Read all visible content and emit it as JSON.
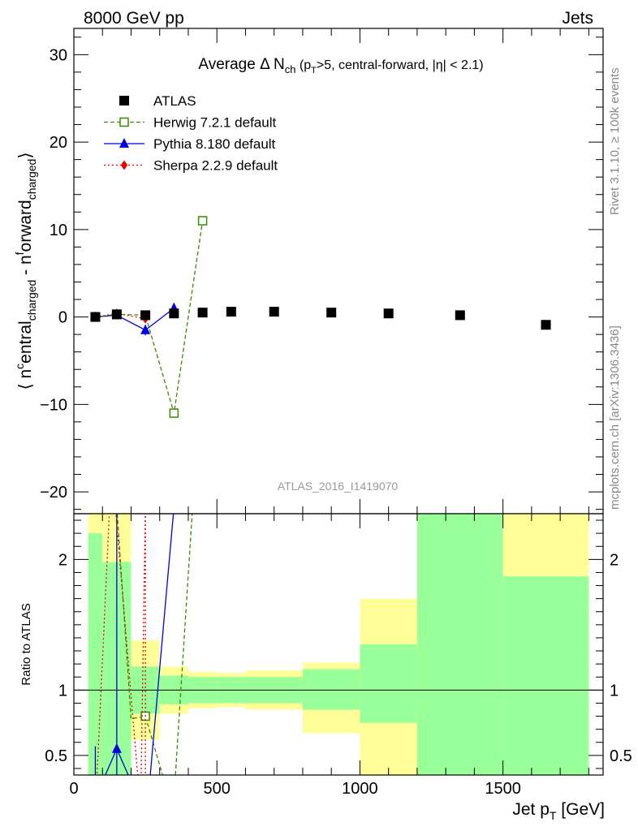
{
  "header": {
    "left": "8000 GeV pp",
    "right": "Jets"
  },
  "side_labels": {
    "rivet": "Rivet 3.1.10, ≥ 100k events",
    "mcplots": "mcplots.cern.ch [arXiv:1306.3436]"
  },
  "chart_data": [
    {
      "type": "scatter",
      "title_parts": {
        "main": "Average Δ N",
        "sub": "ch",
        "rest": " (p",
        "sub2": "T",
        "rest2": ">5, central-forward, |η| < 2.1)"
      },
      "ylabel_parts": {
        "open": "⟨ n",
        "sup1": "c",
        "p1": "entral",
        "sub1": "charged",
        "p2": " - n",
        "sup2": "f",
        "p3": "orward",
        "sub2": "charged",
        "close": "⟩"
      },
      "watermark": "ATLAS_2016_I1419070",
      "xlim": [
        0,
        1850
      ],
      "ylim": [
        -22.5,
        33
      ],
      "yticks": [
        -20,
        -10,
        0,
        10,
        20,
        30
      ],
      "yticklabels": [
        "−20",
        "−10",
        "0",
        "10",
        "20",
        "30"
      ],
      "legend_position": "top-left",
      "series": [
        {
          "name": "ATLAS",
          "style": "data",
          "color": "#000000",
          "x": [
            75,
            150,
            250,
            350,
            450,
            550,
            700,
            900,
            1100,
            1350,
            1650
          ],
          "y": [
            0.0,
            0.3,
            0.2,
            0.4,
            0.5,
            0.6,
            0.6,
            0.5,
            0.4,
            0.2,
            -0.9
          ]
        },
        {
          "name": "Herwig 7.2.1 default",
          "style": "open-square-dashed",
          "color": "#3a8a00",
          "x": [
            75,
            150,
            250,
            350,
            450
          ],
          "y": [
            0.0,
            0.3,
            0.2,
            -11.0,
            11.0
          ]
        },
        {
          "name": "Pythia 8.180 default",
          "style": "triangle-solid",
          "color": "#0000dd",
          "x": [
            75,
            150,
            250,
            350
          ],
          "y": [
            0.0,
            0.2,
            -1.5,
            1.0
          ],
          "err": [
            0.3,
            0.3,
            0.6,
            0.6
          ]
        },
        {
          "name": "Sherpa 2.2.9 default",
          "style": "diamond-dotted",
          "color": "#ee0000",
          "x": [
            75,
            150,
            250
          ],
          "y": [
            0.0,
            0.4,
            -0.2
          ]
        }
      ]
    },
    {
      "type": "ratio",
      "ylabel": "Ratio to ATLAS",
      "xlabel_parts": {
        "main": "Jet p",
        "sub": "T",
        "rest": " [GeV]"
      },
      "xlim": [
        0,
        1850
      ],
      "ylim": [
        0.35,
        2.35
      ],
      "xticks": [
        0,
        500,
        1000,
        1500
      ],
      "xticklabels": [
        "0",
        "500",
        "1000",
        "1500"
      ],
      "yticks": [
        0.5,
        1,
        2
      ],
      "yticklabels": [
        "0.5",
        "1",
        "2"
      ],
      "bands": [
        {
          "x0": 50,
          "x1": 100,
          "y2lo": 0.0,
          "y2hi": 9.0,
          "y1lo": 0.0,
          "y1hi": 2.2
        },
        {
          "x0": 100,
          "x1": 200,
          "y2lo": 0.0,
          "y2hi": 9.0,
          "y1lo": 0.0,
          "y1hi": 1.98
        },
        {
          "x0": 200,
          "x1": 300,
          "y2lo": 0.62,
          "y2hi": 1.38,
          "y1lo": 0.82,
          "y1hi": 1.18
        },
        {
          "x0": 300,
          "x1": 400,
          "y2lo": 0.82,
          "y2hi": 1.18,
          "y1lo": 0.89,
          "y1hi": 1.11
        },
        {
          "x0": 400,
          "x1": 500,
          "y2lo": 0.86,
          "y2hi": 1.14,
          "y1lo": 0.9,
          "y1hi": 1.1
        },
        {
          "x0": 500,
          "x1": 600,
          "y2lo": 0.87,
          "y2hi": 1.13,
          "y1lo": 0.9,
          "y1hi": 1.1
        },
        {
          "x0": 600,
          "x1": 800,
          "y2lo": 0.85,
          "y2hi": 1.15,
          "y1lo": 0.9,
          "y1hi": 1.1
        },
        {
          "x0": 800,
          "x1": 1000,
          "y2lo": 0.67,
          "y2hi": 1.21,
          "y1lo": 0.85,
          "y1hi": 1.16
        },
        {
          "x0": 1000,
          "x1": 1200,
          "y2lo": 0.0,
          "y2hi": 1.7,
          "y1lo": 0.75,
          "y1hi": 1.35
        },
        {
          "x0": 1200,
          "x1": 1500,
          "y2lo": 0.0,
          "y2hi": 9.0,
          "y1lo": 0.0,
          "y1hi": 9.0
        },
        {
          "x0": 1500,
          "x1": 1800,
          "y2lo": 0.0,
          "y2hi": 9.0,
          "y1lo": 0.0,
          "y1hi": 1.87
        }
      ],
      "ratio_series": [
        {
          "name": "Herwig 7.2.1 default",
          "color": "#3a8a00",
          "dash": "dashed",
          "lines": [
            [
              [
                150,
                2.4
              ],
              [
                200,
                0.78
              ],
              [
                250,
                0.8
              ],
              [
                310,
                0.35
              ]
            ],
            [
              [
                355,
                0.35
              ],
              [
                415,
                2.4
              ]
            ]
          ],
          "marker": [
            250,
            0.8
          ]
        },
        {
          "name": "Pythia 8.180 default",
          "color": "#0000dd",
          "dash": "solid",
          "lines": [
            [
              [
                100,
                0.3
              ],
              [
                150,
                0.55
              ],
              [
                200,
                0.3
              ]
            ],
            [
              [
                265,
                0.3
              ],
              [
                350,
                2.4
              ]
            ]
          ],
          "marker": [
            150,
            0.55
          ],
          "errbars": [
            [
              150,
              0.3,
              2.4
            ],
            [
              75,
              0.3,
              0.57
            ]
          ]
        },
        {
          "name": "Sherpa 2.2.9 default",
          "color": "#ee0000",
          "dash": "dotted",
          "lines": [
            [
              [
                80,
                0.3
              ],
              [
                125,
                2.4
              ]
            ],
            [
              [
                145,
                2.4
              ],
              [
                225,
                0.3
              ]
            ],
            [
              [
                235,
                0.3
              ],
              [
                250,
                2.4
              ]
            ]
          ],
          "errbars": [
            [
              250,
              0.3,
              2.4
            ]
          ]
        }
      ]
    }
  ]
}
